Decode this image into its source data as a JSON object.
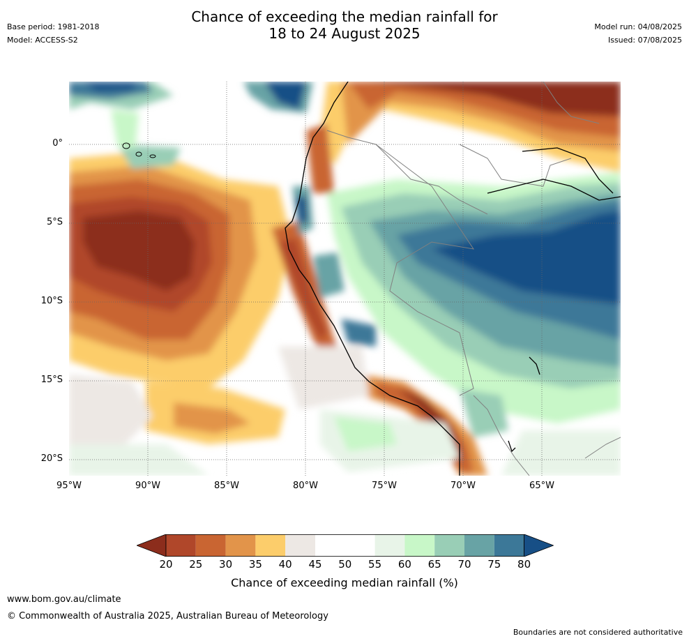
{
  "header": {
    "title_line1": "Chance of exceeding the median rainfall for",
    "title_line2": "18 to 24 August 2025",
    "base_period": "Base period: 1981-2018",
    "model": "Model: ACCESS-S2",
    "model_run": "Model run: 04/08/2025",
    "issued": "Issued: 07/08/2025"
  },
  "map": {
    "x_ticks": [
      "95°W",
      "90°W",
      "85°W",
      "80°W",
      "75°W",
      "70°W",
      "65°W"
    ],
    "y_ticks": [
      "0°",
      "5°S",
      "10°S",
      "15°S",
      "20°S"
    ]
  },
  "colorbar": {
    "ticks": [
      "20",
      "25",
      "30",
      "35",
      "40",
      "45",
      "50",
      "55",
      "60",
      "65",
      "70",
      "75",
      "80"
    ],
    "colors": [
      "#8c2d1c",
      "#b0472a",
      "#c96532",
      "#e2944a",
      "#fccd6b",
      "#ede8e4",
      "#ffffff",
      "#ffffff",
      "#e8f4e8",
      "#c8f7c8",
      "#99ceb6",
      "#68a3a5",
      "#3c7898",
      "#174f86"
    ],
    "label": "Chance of exceeding median rainfall (%)"
  },
  "footer": {
    "website": "www.bom.gov.au/climate",
    "copyright": "© Commonwealth of Australia 2025, Australian Bureau of Meteorology",
    "disclaimer": "Boundaries are not considered authoritative"
  }
}
